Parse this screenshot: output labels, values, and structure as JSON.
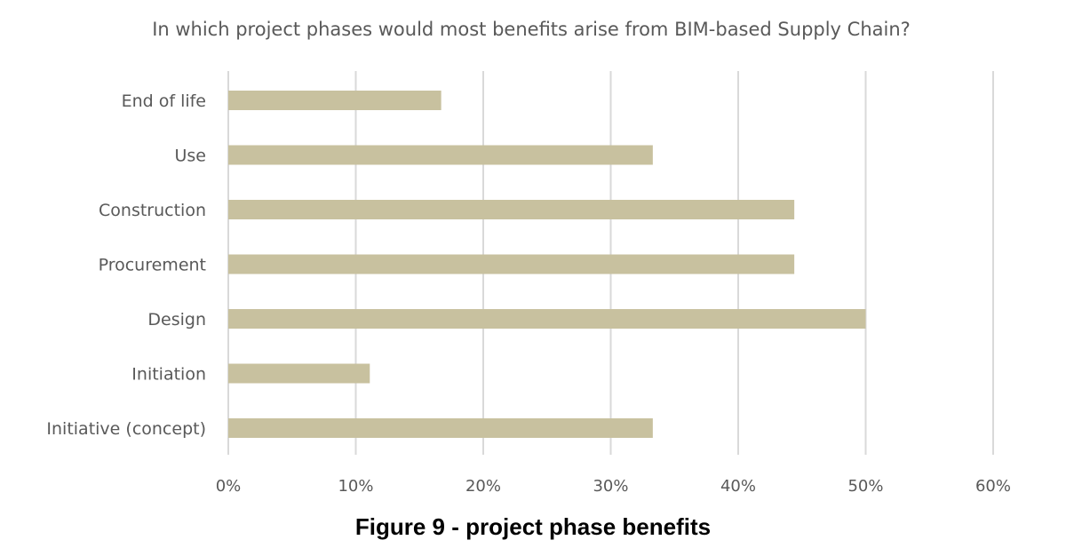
{
  "chart_data": {
    "type": "bar",
    "orientation": "horizontal",
    "title": "In which project phases would most benefits arise from BIM-based Supply Chain?",
    "categories": [
      "End of life",
      "Use",
      "Construction",
      "Procurement",
      "Design",
      "Initiation",
      "Initiative (concept)"
    ],
    "values": [
      16.7,
      33.3,
      44.4,
      44.4,
      50.0,
      11.1,
      33.3
    ],
    "xlabel": "",
    "ylabel": "",
    "xlim": [
      0,
      60
    ],
    "x_ticks": [
      0,
      10,
      20,
      30,
      40,
      50,
      60
    ],
    "x_tick_labels": [
      "0%",
      "10%",
      "20%",
      "30%",
      "40%",
      "50%",
      "60%"
    ],
    "grid": "vertical",
    "legend": "none",
    "bar_color": "#c8c19f",
    "grid_color": "#d9d9d9",
    "text_color": "#595959"
  },
  "caption": "Figure 9 - project phase benefits"
}
